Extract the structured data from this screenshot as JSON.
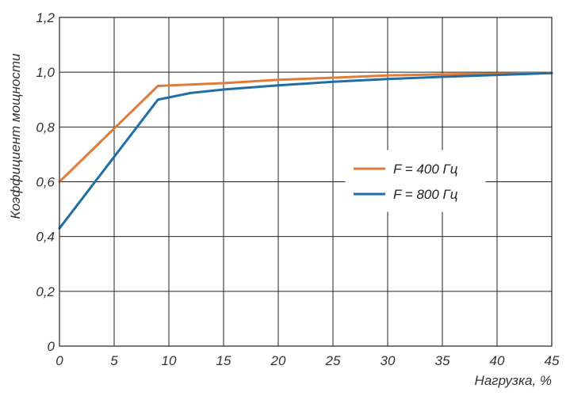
{
  "chart_data": {
    "type": "line",
    "xlabel": "Нагрузка, %",
    "ylabel": "Коэффициент мощности",
    "xlim": [
      0,
      45
    ],
    "ylim": [
      0,
      1.2
    ],
    "xticks": [
      0,
      5,
      10,
      15,
      20,
      25,
      30,
      35,
      40,
      45
    ],
    "yticks": [
      0,
      0.2,
      0.4,
      0.6,
      0.8,
      1.0,
      1.2
    ],
    "xtick_labels": [
      "0",
      "5",
      "10",
      "15",
      "20",
      "25",
      "30",
      "35",
      "40",
      "45"
    ],
    "ytick_labels": [
      "0",
      "0,2",
      "0,4",
      "0,6",
      "0,8",
      "1,0",
      "1,2"
    ],
    "grid": true,
    "legend_position": "center-right",
    "series": [
      {
        "name": "F = 400 Гц",
        "color": "#e07b39",
        "x": [
          0,
          9,
          15,
          20,
          25,
          30,
          35,
          40,
          45
        ],
        "y": [
          0.6,
          0.95,
          0.96,
          0.972,
          0.98,
          0.988,
          0.992,
          0.995,
          0.997
        ]
      },
      {
        "name": "F = 800 Гц",
        "color": "#1f6fa5",
        "x": [
          0,
          9,
          12,
          15,
          20,
          25,
          30,
          35,
          40,
          45
        ],
        "y": [
          0.43,
          0.9,
          0.924,
          0.937,
          0.952,
          0.965,
          0.975,
          0.983,
          0.99,
          0.997
        ]
      }
    ]
  }
}
